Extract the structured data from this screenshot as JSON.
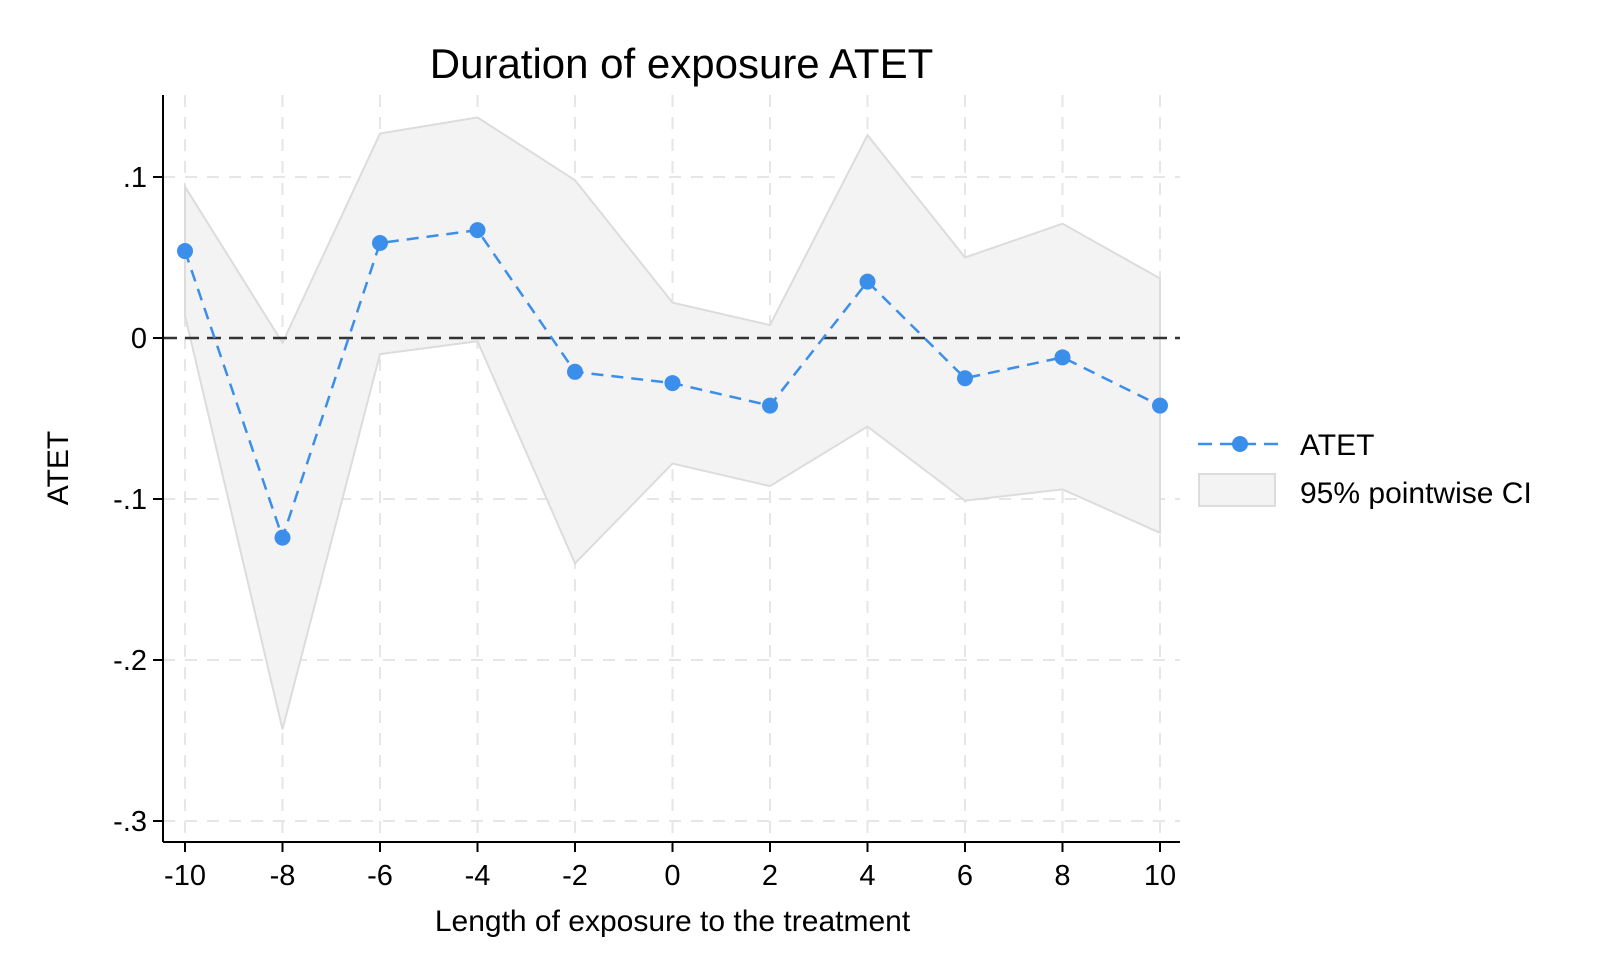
{
  "chart_data": {
    "type": "line",
    "title": "Duration of exposure ATET",
    "xlabel": "Length of exposure to the treatment",
    "ylabel": "ATET",
    "xlim": [
      -10,
      10
    ],
    "ylim": [
      -0.3,
      0.15
    ],
    "xticks": [
      -10,
      -8,
      -6,
      -4,
      -2,
      0,
      2,
      4,
      6,
      8,
      10
    ],
    "xtick_labels": [
      "-10",
      "-8",
      "-6",
      "-4",
      "-2",
      "0",
      "2",
      "4",
      "6",
      "8",
      "10"
    ],
    "yticks": [
      -0.3,
      -0.2,
      -0.1,
      0,
      0.1
    ],
    "ytick_labels": [
      "-.3",
      "-.2",
      "-.1",
      "0",
      ".1"
    ],
    "grid": true,
    "reference_line": 0,
    "x": [
      -10,
      -8,
      -6,
      -4,
      -2,
      0,
      2,
      4,
      6,
      8,
      10
    ],
    "series": [
      {
        "name": "ATET",
        "values": [
          0.054,
          -0.124,
          0.059,
          0.067,
          -0.021,
          -0.028,
          -0.042,
          0.035,
          -0.025,
          -0.012,
          -0.042
        ],
        "color": "#3b8eea",
        "style": "dashed-markers"
      }
    ],
    "band": {
      "name": "95% pointwise CI",
      "lower": [
        0.014,
        -0.243,
        -0.01,
        -0.002,
        -0.14,
        -0.078,
        -0.092,
        -0.055,
        -0.101,
        -0.094,
        -0.121
      ],
      "upper": [
        0.094,
        -0.003,
        0.127,
        0.137,
        0.098,
        0.022,
        0.008,
        0.126,
        0.05,
        0.071,
        0.037
      ],
      "fill": "#f3f3f3",
      "stroke": "#dcdcdc"
    },
    "legend_position": "right"
  }
}
